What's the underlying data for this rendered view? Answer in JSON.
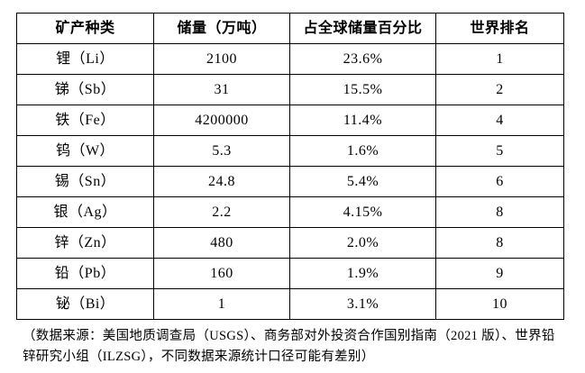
{
  "table": {
    "headers": [
      "矿产种类",
      "储量（万吨）",
      "占全球储量百分比",
      "世界排名"
    ],
    "rows": [
      [
        "锂（Li）",
        "2100",
        "23.6%",
        "1"
      ],
      [
        "锑（Sb）",
        "31",
        "15.5%",
        "2"
      ],
      [
        "铁（Fe）",
        "4200000",
        "11.4%",
        "4"
      ],
      [
        "钨（W）",
        "5.3",
        "1.6%",
        "5"
      ],
      [
        "锡（Sn）",
        "24.8",
        "5.4%",
        "6"
      ],
      [
        "银（Ag）",
        "2.2",
        "4.15%",
        "8"
      ],
      [
        "锌（Zn）",
        "480",
        "2.0%",
        "8"
      ],
      [
        "铅（Pb）",
        "160",
        "1.9%",
        "9"
      ],
      [
        "铋（Bi）",
        "1",
        "3.1%",
        "10"
      ]
    ]
  },
  "footnote": "（数据来源：美国地质调查局（USGS）、商务部对外投资合作国别指南（2021 版）、世界铅锌研究小组（ILZSG），不同数据来源统计口径可能有差别）",
  "colors": {
    "border": "#000000",
    "text": "#000000",
    "background": "#ffffff"
  }
}
